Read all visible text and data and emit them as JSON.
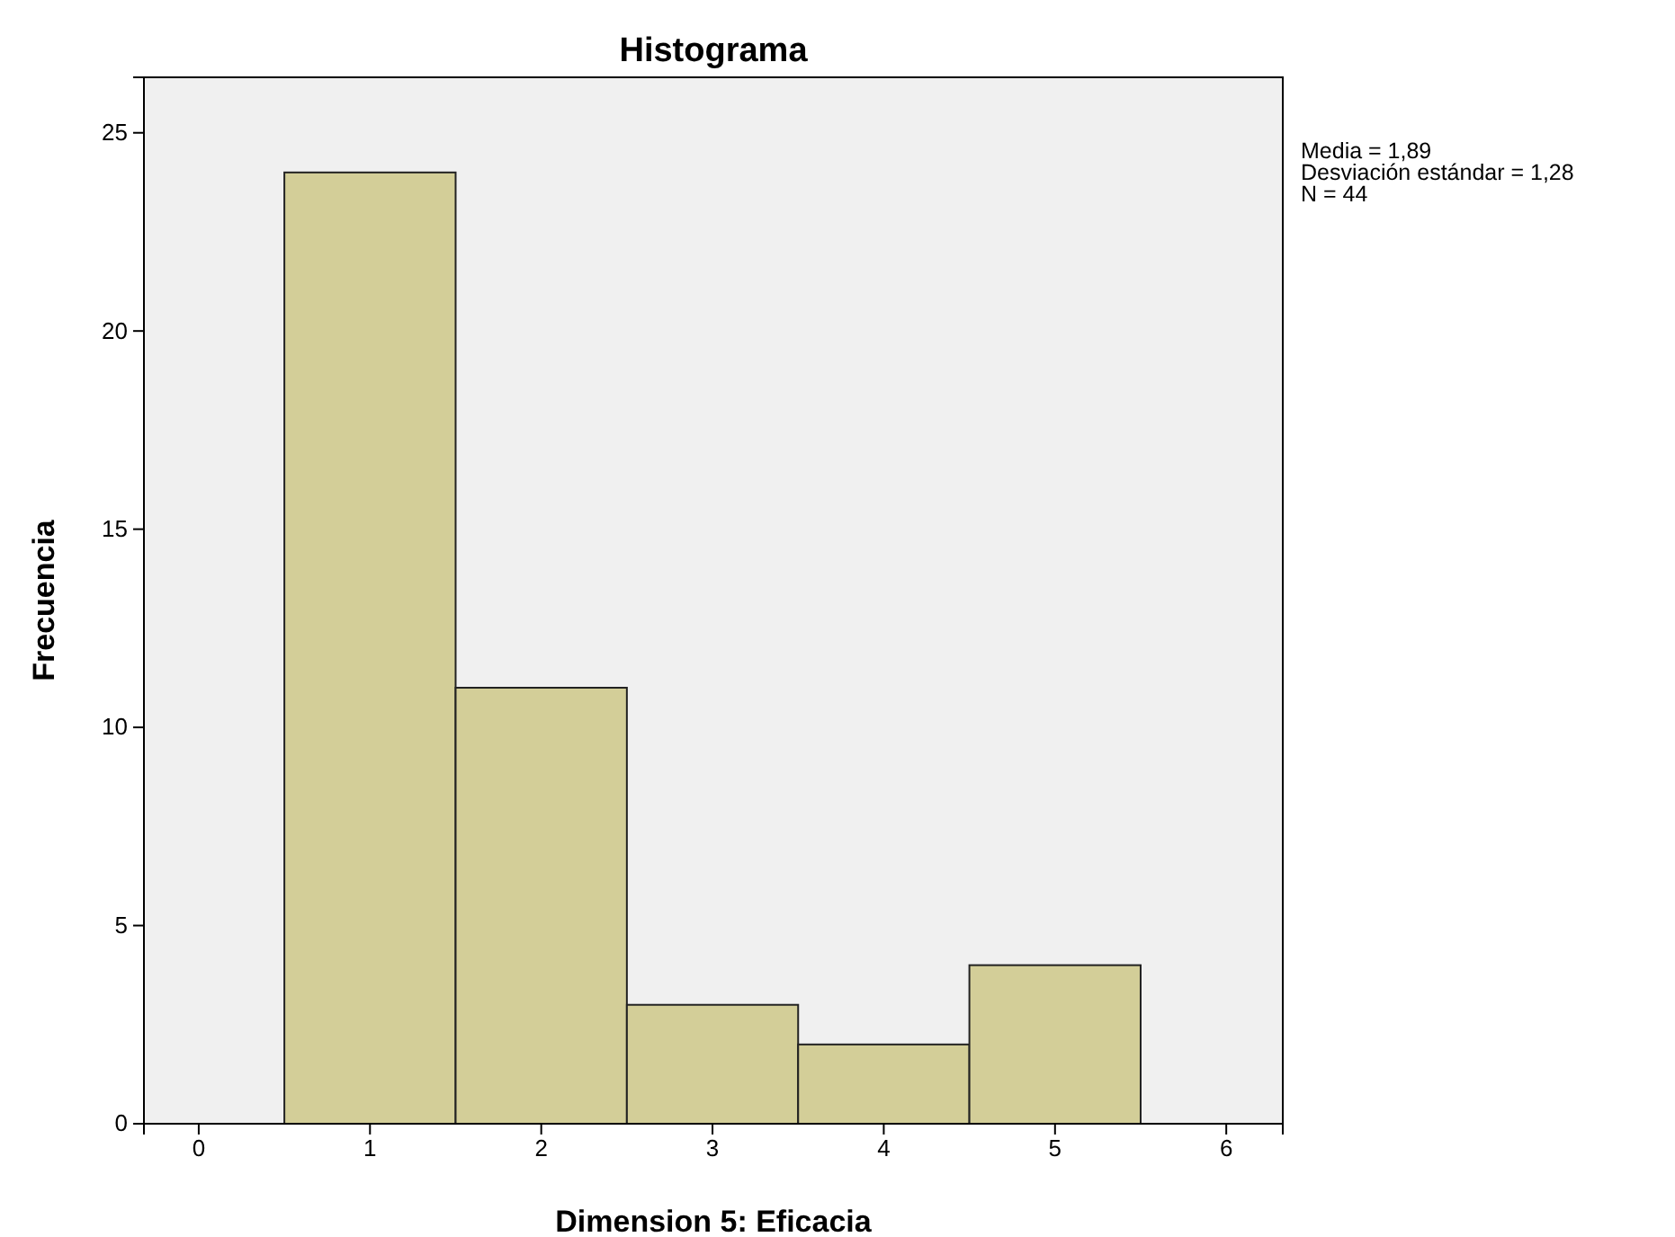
{
  "chart_data": {
    "type": "histogram",
    "title": "Histograma",
    "xlabel": "Dimension 5: Eficacia",
    "ylabel": "Frecuencia",
    "bins": [
      0.5,
      1.5,
      2.5,
      3.5,
      4.5,
      5.5
    ],
    "values": [
      24,
      11,
      3,
      2,
      4
    ],
    "color": "#d3ce98",
    "xlim": [
      -0.32,
      6.33
    ],
    "xticks": [
      0,
      1,
      2,
      3,
      4,
      5,
      6
    ],
    "ylim": [
      0,
      26.4
    ],
    "yticks": [
      0,
      5,
      10,
      15,
      20,
      25
    ],
    "grid": false,
    "annotations": [
      "Media = 1,89",
      "Desviación estándar = 1,28",
      "N = 44"
    ]
  }
}
